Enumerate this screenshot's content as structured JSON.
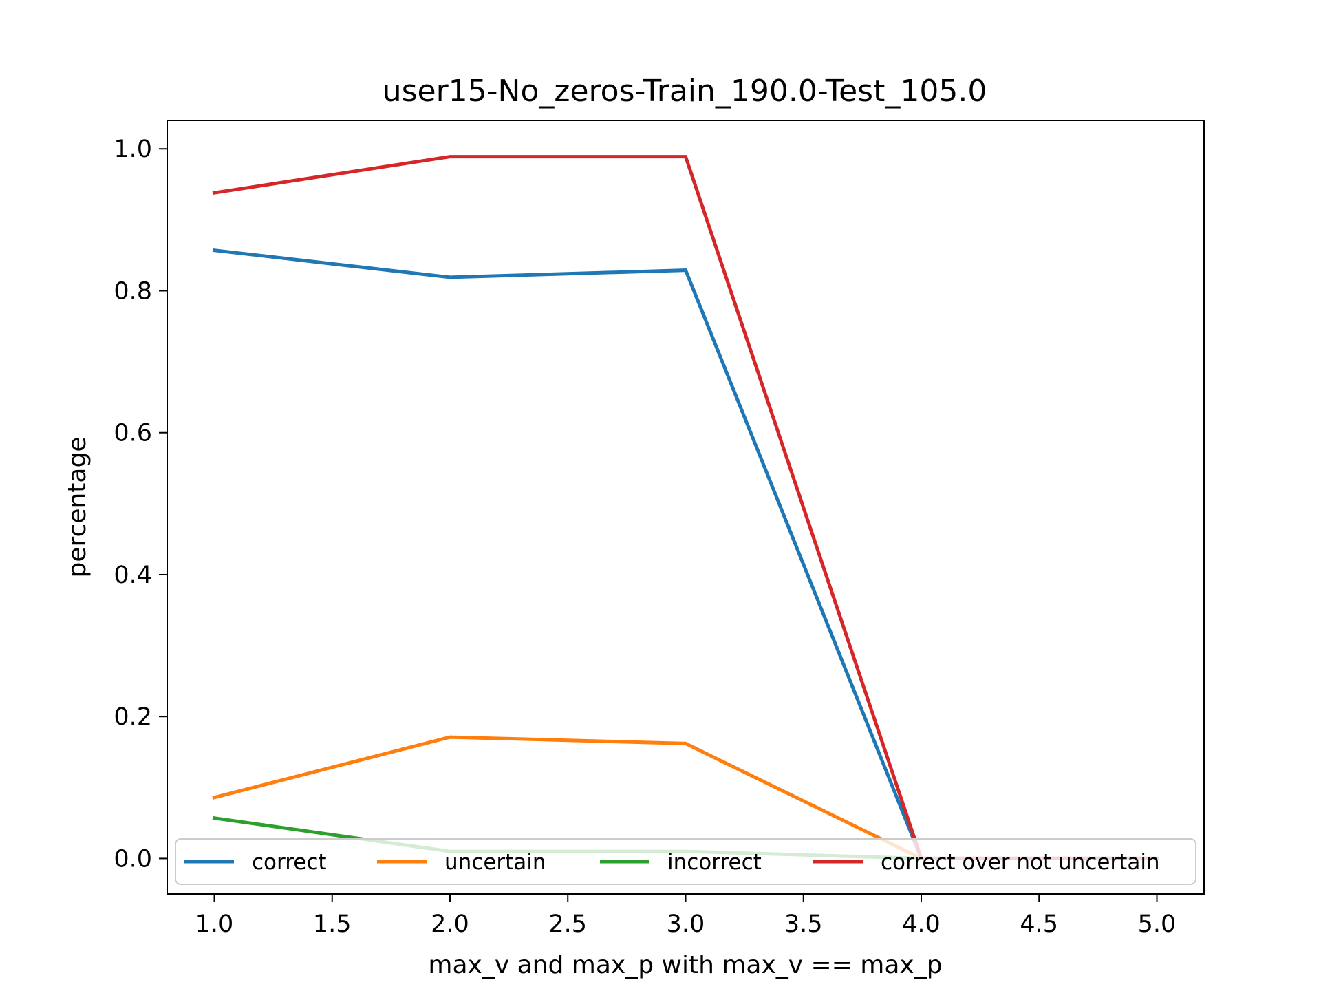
{
  "chart_data": {
    "type": "line",
    "title": "user15-No_zeros-Train_190.0-Test_105.0",
    "xlabel": "max_v and max_p with max_v == max_p",
    "ylabel": "percentage",
    "xlim": [
      0.8,
      5.2
    ],
    "ylim": [
      -0.05,
      1.04
    ],
    "xticks": [
      "1.0",
      "1.5",
      "2.0",
      "2.5",
      "3.0",
      "3.5",
      "4.0",
      "4.5",
      "5.0"
    ],
    "yticks": [
      "0.0",
      "0.2",
      "0.4",
      "0.6",
      "0.8",
      "1.0"
    ],
    "x": [
      1,
      2,
      3,
      4,
      5
    ],
    "grid": false,
    "legend_position": "lower-center",
    "series": [
      {
        "name": "correct",
        "color": "#1f77b4",
        "values": [
          0.857,
          0.819,
          0.829,
          0.0,
          0.0
        ]
      },
      {
        "name": "uncertain",
        "color": "#ff7f0e",
        "values": [
          0.086,
          0.171,
          0.162,
          0.0,
          0.0
        ]
      },
      {
        "name": "incorrect",
        "color": "#2ca02c",
        "values": [
          0.057,
          0.01,
          0.01,
          0.0,
          0.0
        ]
      },
      {
        "name": "correct over not uncertain",
        "color": "#d62728",
        "values": [
          0.938,
          0.989,
          0.989,
          0.0,
          0.0
        ]
      }
    ]
  }
}
